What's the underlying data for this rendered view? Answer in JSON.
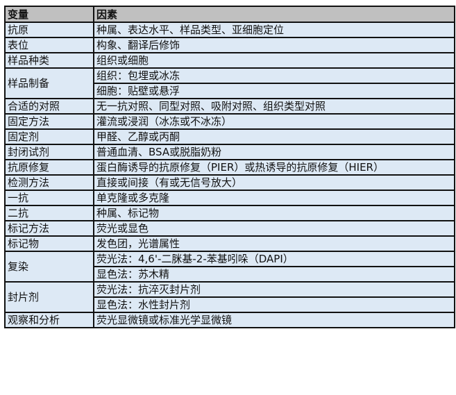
{
  "header": {
    "variable": "变量",
    "factor": "因素"
  },
  "rows": [
    {
      "variable": "抗原",
      "factors": [
        "种属、表达水平、样品类型、亚细胞定位"
      ]
    },
    {
      "variable": "表位",
      "factors": [
        "构象、翻译后修饰"
      ]
    },
    {
      "variable": "样品种类",
      "factors": [
        "组织或细胞"
      ]
    },
    {
      "variable": "样品制备",
      "factors": [
        "组织：包埋或冰冻",
        "细胞：贴壁或悬浮"
      ]
    },
    {
      "variable": "合适的对照",
      "factors": [
        "无一抗对照、同型对照、吸附对照、组织类型对照"
      ]
    },
    {
      "variable": "固定方法",
      "factors": [
        "灌流或浸润（冰冻或不冰冻）"
      ]
    },
    {
      "variable": "固定剂",
      "factors": [
        "甲醛、乙醇或丙酮"
      ]
    },
    {
      "variable": "封闭试剂",
      "factors": [
        "普通血清、BSA或脱脂奶粉"
      ]
    },
    {
      "variable": "抗原修复",
      "factors": [
        "蛋白酶诱导的抗原修复（PIER）或热诱导的抗原修复（HIER）"
      ]
    },
    {
      "variable": "检测方法",
      "factors": [
        "直接或间接（有或无信号放大）"
      ]
    },
    {
      "variable": "一抗",
      "factors": [
        "单克隆或多克隆"
      ]
    },
    {
      "variable": "二抗",
      "factors": [
        "种属、标记物"
      ]
    },
    {
      "variable": "标记方法",
      "factors": [
        "荧光或显色"
      ]
    },
    {
      "variable": "标记物",
      "factors": [
        "发色团，光谱属性"
      ]
    },
    {
      "variable": "复染",
      "factors": [
        "荧光法：4,6'-二脒基-2-苯基吲哚（DAPI）",
        "显色法：苏木精"
      ]
    },
    {
      "variable": "封片剂",
      "factors": [
        "荧光法：抗淬灭封片剂",
        "显色法：水性封片剂"
      ]
    },
    {
      "variable": "观察和分析",
      "factors": [
        "荧光显微镜或标准光学显微镜"
      ]
    }
  ]
}
